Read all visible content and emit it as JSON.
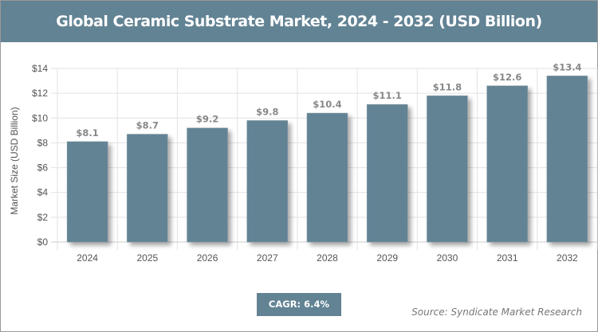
{
  "header": {
    "title": "Global Ceramic Substrate Market, 2024 - 2032 (USD Billion)"
  },
  "footer": {
    "cagr": "CAGR: 6.4%",
    "source": "Source: Syndicate Market Research"
  },
  "colors": {
    "bar": "#628394",
    "header": "#628394"
  },
  "chart_data": {
    "type": "bar",
    "title": "Global Ceramic Substrate Market, 2024 - 2032 (USD Billion)",
    "xlabel": "",
    "ylabel": "Market Size (USD Billion)",
    "categories": [
      "2024",
      "2025",
      "2026",
      "2027",
      "2028",
      "2029",
      "2030",
      "2031",
      "2032"
    ],
    "values": [
      8.1,
      8.7,
      9.2,
      9.8,
      10.4,
      11.1,
      11.8,
      12.6,
      13.4
    ],
    "value_labels": [
      "$8.1",
      "$8.7",
      "$9.2",
      "$9.8",
      "$10.4",
      "$11.1",
      "$11.8",
      "$12.6",
      "$13.4"
    ],
    "ylim": [
      0,
      14
    ],
    "yticks": [
      0,
      2,
      4,
      6,
      8,
      10,
      12,
      14
    ],
    "ytick_labels": [
      "$0",
      "$2",
      "$4",
      "$6",
      "$8",
      "$10",
      "$12",
      "$14"
    ],
    "grid": true,
    "legend": "none"
  }
}
